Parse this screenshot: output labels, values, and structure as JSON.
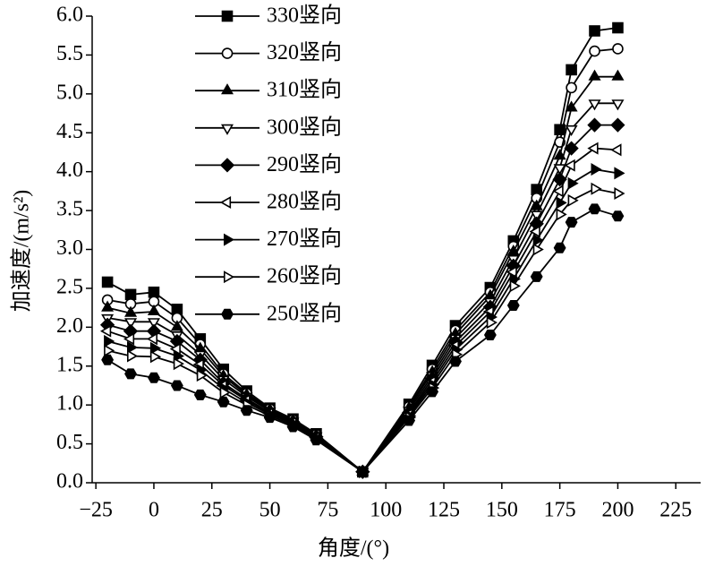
{
  "chart_data": {
    "type": "line",
    "xlabel": "角度/(°)",
    "ylabel": "加速度/(m/s²)",
    "xlim": [
      -26.6,
      235.7
    ],
    "ylim": [
      0,
      6
    ],
    "xticks": [
      {
        "value": -25,
        "label": "−25"
      },
      0,
      25,
      50,
      75,
      100,
      125,
      150,
      175,
      200,
      225
    ],
    "yticks": [
      {
        "value": 0,
        "label": "0.0"
      },
      0.5,
      {
        "value": 1,
        "label": "1.0"
      },
      1.5,
      {
        "value": 2,
        "label": "2.0"
      },
      2.5,
      {
        "value": 3,
        "label": "3.0"
      },
      3.5,
      {
        "value": 4,
        "label": "4.0"
      },
      4.5,
      {
        "value": 5,
        "label": "5.0"
      },
      5.5,
      {
        "value": 6,
        "label": "6.0"
      }
    ],
    "x": [
      -20,
      -10,
      0,
      10,
      20,
      30,
      40,
      50,
      60,
      70,
      90,
      110,
      120,
      130,
      145,
      155,
      165,
      175,
      180,
      190,
      200
    ],
    "series": [
      {
        "name": "330竖向",
        "color": "#000000",
        "marker": "square",
        "filled": true,
        "values": [
          2.58,
          2.42,
          2.45,
          2.23,
          1.85,
          1.46,
          1.18,
          0.96,
          0.82,
          0.63,
          0.14,
          1.01,
          1.51,
          2.02,
          2.51,
          3.11,
          3.77,
          4.54,
          5.31,
          5.81,
          5.85
        ]
      },
      {
        "name": "320竖向",
        "color": "#000000",
        "marker": "circle",
        "filled": false,
        "values": [
          2.35,
          2.3,
          2.33,
          2.12,
          1.78,
          1.4,
          1.15,
          0.95,
          0.81,
          0.62,
          0.14,
          0.98,
          1.46,
          1.96,
          2.45,
          3.04,
          3.66,
          4.38,
          5.08,
          5.55,
          5.58
        ]
      },
      {
        "name": "310竖向",
        "color": "#000000",
        "marker": "triangle-up",
        "filled": true,
        "values": [
          2.25,
          2.18,
          2.2,
          2.0,
          1.72,
          1.37,
          1.13,
          0.94,
          0.8,
          0.61,
          0.14,
          0.96,
          1.42,
          1.91,
          2.4,
          2.97,
          3.55,
          4.2,
          4.82,
          5.22,
          5.22
        ]
      },
      {
        "name": "300竖向",
        "color": "#000000",
        "marker": "triangle-down",
        "filled": false,
        "values": [
          2.12,
          2.07,
          2.07,
          1.9,
          1.65,
          1.33,
          1.11,
          0.92,
          0.79,
          0.6,
          0.14,
          0.93,
          1.38,
          1.86,
          2.33,
          2.88,
          3.45,
          4.05,
          4.55,
          4.88,
          4.88
        ]
      },
      {
        "name": "290竖向",
        "color": "#000000",
        "marker": "diamond",
        "filled": true,
        "values": [
          2.03,
          1.95,
          1.95,
          1.82,
          1.58,
          1.28,
          1.08,
          0.9,
          0.78,
          0.59,
          0.14,
          0.9,
          1.34,
          1.81,
          2.26,
          2.79,
          3.33,
          3.9,
          4.3,
          4.6,
          4.6
        ]
      },
      {
        "name": "280竖向",
        "color": "#000000",
        "marker": "triangle-left",
        "filled": false,
        "values": [
          1.95,
          1.85,
          1.85,
          1.72,
          1.52,
          1.25,
          1.06,
          0.89,
          0.77,
          0.58,
          0.14,
          0.88,
          1.3,
          1.76,
          2.2,
          2.71,
          3.23,
          3.75,
          4.08,
          4.3,
          4.28
        ]
      },
      {
        "name": "270竖向",
        "color": "#000000",
        "marker": "triangle-right",
        "filled": true,
        "values": [
          1.82,
          1.74,
          1.73,
          1.63,
          1.45,
          1.21,
          1.03,
          0.88,
          0.76,
          0.57,
          0.14,
          0.86,
          1.26,
          1.71,
          2.13,
          2.62,
          3.12,
          3.6,
          3.85,
          4.03,
          3.98
        ]
      },
      {
        "name": "260竖向",
        "color": "#000000",
        "marker": "triangle-right",
        "filled": false,
        "values": [
          1.7,
          1.63,
          1.62,
          1.53,
          1.38,
          1.16,
          1.0,
          0.86,
          0.74,
          0.56,
          0.14,
          0.84,
          1.22,
          1.65,
          2.06,
          2.53,
          3.0,
          3.45,
          3.63,
          3.78,
          3.72
        ]
      },
      {
        "name": "250竖向",
        "color": "#000000",
        "marker": "hexagon",
        "filled": true,
        "values": [
          1.58,
          1.4,
          1.35,
          1.25,
          1.13,
          1.04,
          0.93,
          0.84,
          0.72,
          0.55,
          0.14,
          0.8,
          1.17,
          1.56,
          1.9,
          2.28,
          2.65,
          3.02,
          3.35,
          3.52,
          3.43
        ]
      }
    ]
  }
}
